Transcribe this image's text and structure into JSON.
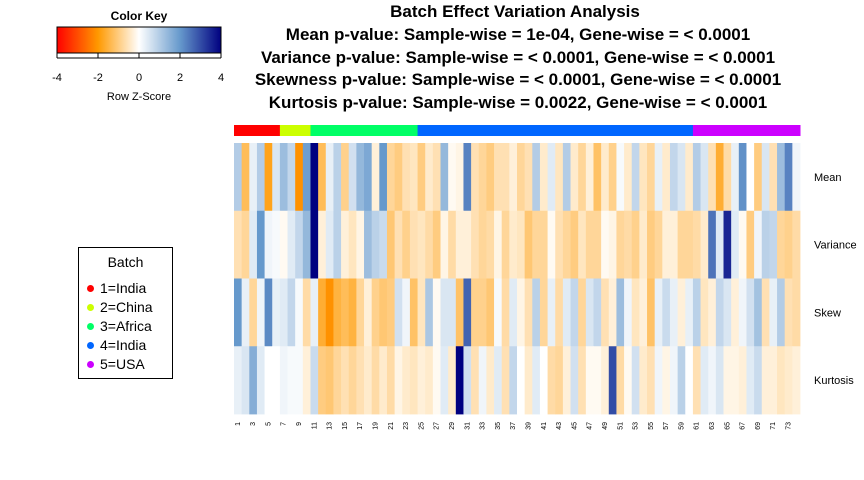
{
  "titles": [
    "Batch Effect Variation Analysis",
    "Mean p-value: Sample-wise = 1e-04, Gene-wise = < 0.0001",
    "Variance p-value: Sample-wise = < 0.0001, Gene-wise = < 0.0001",
    "Skewness p-value: Sample-wise = < 0.0001, Gene-wise = < 0.0001",
    "Kurtosis p-value: Sample-wise = 0.0022, Gene-wise = < 0.0001"
  ],
  "color_key": {
    "title": "Color Key",
    "xlabel": "Row Z-Score",
    "ticks": [
      "-4",
      "-2",
      "0",
      "2",
      "4"
    ],
    "range": [
      -4,
      4
    ]
  },
  "legend": {
    "title": "Batch",
    "items": [
      {
        "label": "1=India",
        "color": "#FF0000"
      },
      {
        "label": "2=China",
        "color": "#CCFF00"
      },
      {
        "label": "3=Africa",
        "color": "#00FF66"
      },
      {
        "label": "4=India",
        "color": "#0066FF"
      },
      {
        "label": "5=USA",
        "color": "#CC00FF"
      }
    ]
  },
  "chart_data": {
    "type": "heatmap",
    "rows": [
      "Mean",
      "Variance",
      "Skew",
      "Kurtosis"
    ],
    "column_labels": [
      "1",
      "3",
      "5",
      "7",
      "9",
      "11",
      "13",
      "15",
      "17",
      "19",
      "21",
      "23",
      "25",
      "27",
      "29",
      "31",
      "33",
      "35",
      "37",
      "39",
      "41",
      "43",
      "45",
      "47",
      "49",
      "51",
      "53",
      "55",
      "57",
      "59",
      "61",
      "63",
      "65",
      "67",
      "69",
      "71",
      "73"
    ],
    "n_columns": 74,
    "batch_counts": [
      6,
      4,
      14,
      36,
      14
    ],
    "batch_colors": [
      "#FF0000",
      "#CCFF00",
      "#00FF66",
      "#0066FF",
      "#CC00FF"
    ],
    "color_scale": [
      "#FF0000",
      "#FF9900",
      "#FFFFFF",
      "#6699CC",
      "#000080"
    ],
    "values": {
      "Mean": [
        1.0,
        -1.3,
        0.3,
        1.0,
        -1.8,
        0.5,
        1.3,
        0.8,
        -2.1,
        1.9,
        4.2,
        -1.3,
        0.3,
        0.9,
        -0.9,
        0.6,
        1.4,
        1.7,
        -0.3,
        2.0,
        -0.8,
        -1.0,
        -0.6,
        -0.5,
        -1.0,
        -0.4,
        -0.6,
        1.4,
        -0.1,
        -0.2,
        2.3,
        -0.6,
        -0.8,
        -1.0,
        -0.6,
        -0.6,
        -0.3,
        -0.8,
        -0.6,
        1.0,
        -0.4,
        0.4,
        -0.5,
        1.0,
        -0.4,
        -0.8,
        -0.3,
        -1.2,
        -0.4,
        -0.9,
        0.1,
        -0.4,
        0.8,
        -0.5,
        -0.8,
        0.3,
        -0.4,
        0.8,
        0.5,
        -0.4,
        1.0,
        0.5,
        -0.6,
        -1.6,
        -0.7,
        0.3,
        2.1,
        0.0,
        -1.0,
        0.5,
        -0.6,
        1.3,
        2.3,
        0.2
      ],
      "Variance": [
        -0.6,
        -0.8,
        0.4,
        2.0,
        0.2,
        0.1,
        -0.1,
        0.4,
        0.8,
        1.4,
        4.3,
        -0.3,
        0.4,
        0.9,
        -0.3,
        -0.5,
        -0.2,
        1.3,
        0.9,
        0.7,
        -1.1,
        -0.6,
        -0.9,
        -0.6,
        -0.5,
        -0.7,
        -1.0,
        -0.2,
        -0.7,
        -0.3,
        -0.3,
        -0.6,
        -0.8,
        -0.7,
        -0.2,
        -0.8,
        -0.4,
        -0.5,
        -1.1,
        -0.8,
        -0.8,
        -0.1,
        -0.6,
        -0.8,
        -1.0,
        -0.5,
        -0.8,
        -0.8,
        -0.1,
        -0.2,
        -0.8,
        -0.7,
        -0.9,
        -0.4,
        -1.0,
        -0.8,
        -0.3,
        -0.3,
        -0.8,
        -0.8,
        -0.7,
        -0.4,
        2.5,
        0.4,
        3.5,
        0.4,
        -0.1,
        -1.0,
        0.2,
        0.9,
        0.8,
        -0.8,
        -0.9,
        -0.7
      ],
      "Skew": [
        2.0,
        0.3,
        -0.8,
        0.2,
        2.2,
        0.3,
        0.4,
        0.8,
        0.1,
        -0.7,
        0.3,
        -1.6,
        -2.1,
        -1.5,
        -1.3,
        -1.5,
        -0.8,
        -0.3,
        -0.9,
        -1.1,
        -1.0,
        0.6,
        0.2,
        -1.2,
        -0.5,
        1.1,
        -0.1,
        0.5,
        0.5,
        -1.2,
        2.7,
        -0.9,
        -0.9,
        -1.1,
        0.1,
        -0.7,
        0.4,
        -0.2,
        -0.6,
        0.9,
        -0.8,
        0.3,
        -0.7,
        0.4,
        0.8,
        -0.8,
        0.5,
        0.8,
        -0.6,
        -0.3,
        1.3,
        0.2,
        -0.5,
        -0.3,
        -1.2,
        0.3,
        0.7,
        0.3,
        -0.3,
        0.3,
        0.9,
        -0.5,
        -0.3,
        0.8,
        0.5,
        -0.3,
        0.2,
        0.6,
        1.2,
        -0.6,
        0.3,
        1.0,
        -0.6,
        -0.7
      ],
      "Kurtosis": [
        0.3,
        0.5,
        1.6,
        0.4,
        0.0,
        0.0,
        0.2,
        0.1,
        0.1,
        -0.3,
        0.7,
        -1.0,
        -1.1,
        -0.8,
        -0.6,
        -0.8,
        -0.6,
        -0.4,
        -0.7,
        -0.4,
        -0.7,
        -0.2,
        -0.4,
        -0.5,
        -0.3,
        -0.4,
        -0.1,
        0.4,
        -0.4,
        4.1,
        0.6,
        -0.6,
        0.2,
        -0.4,
        0.4,
        -0.6,
        0.8,
        0.0,
        -0.4,
        0.4,
        0.0,
        -0.7,
        -0.8,
        -0.3,
        0.6,
        -0.6,
        -0.1,
        -0.1,
        -0.3,
        3.0,
        -0.7,
        -0.1,
        0.6,
        -0.4,
        -0.6,
        0.2,
        -0.2,
        0.2,
        0.9,
        0.0,
        -0.6,
        0.4,
        0.2,
        0.5,
        -0.2,
        -0.2,
        -0.3,
        0.4,
        0.7,
        -0.3,
        -0.3,
        -0.5,
        -0.4,
        -0.3
      ]
    }
  }
}
